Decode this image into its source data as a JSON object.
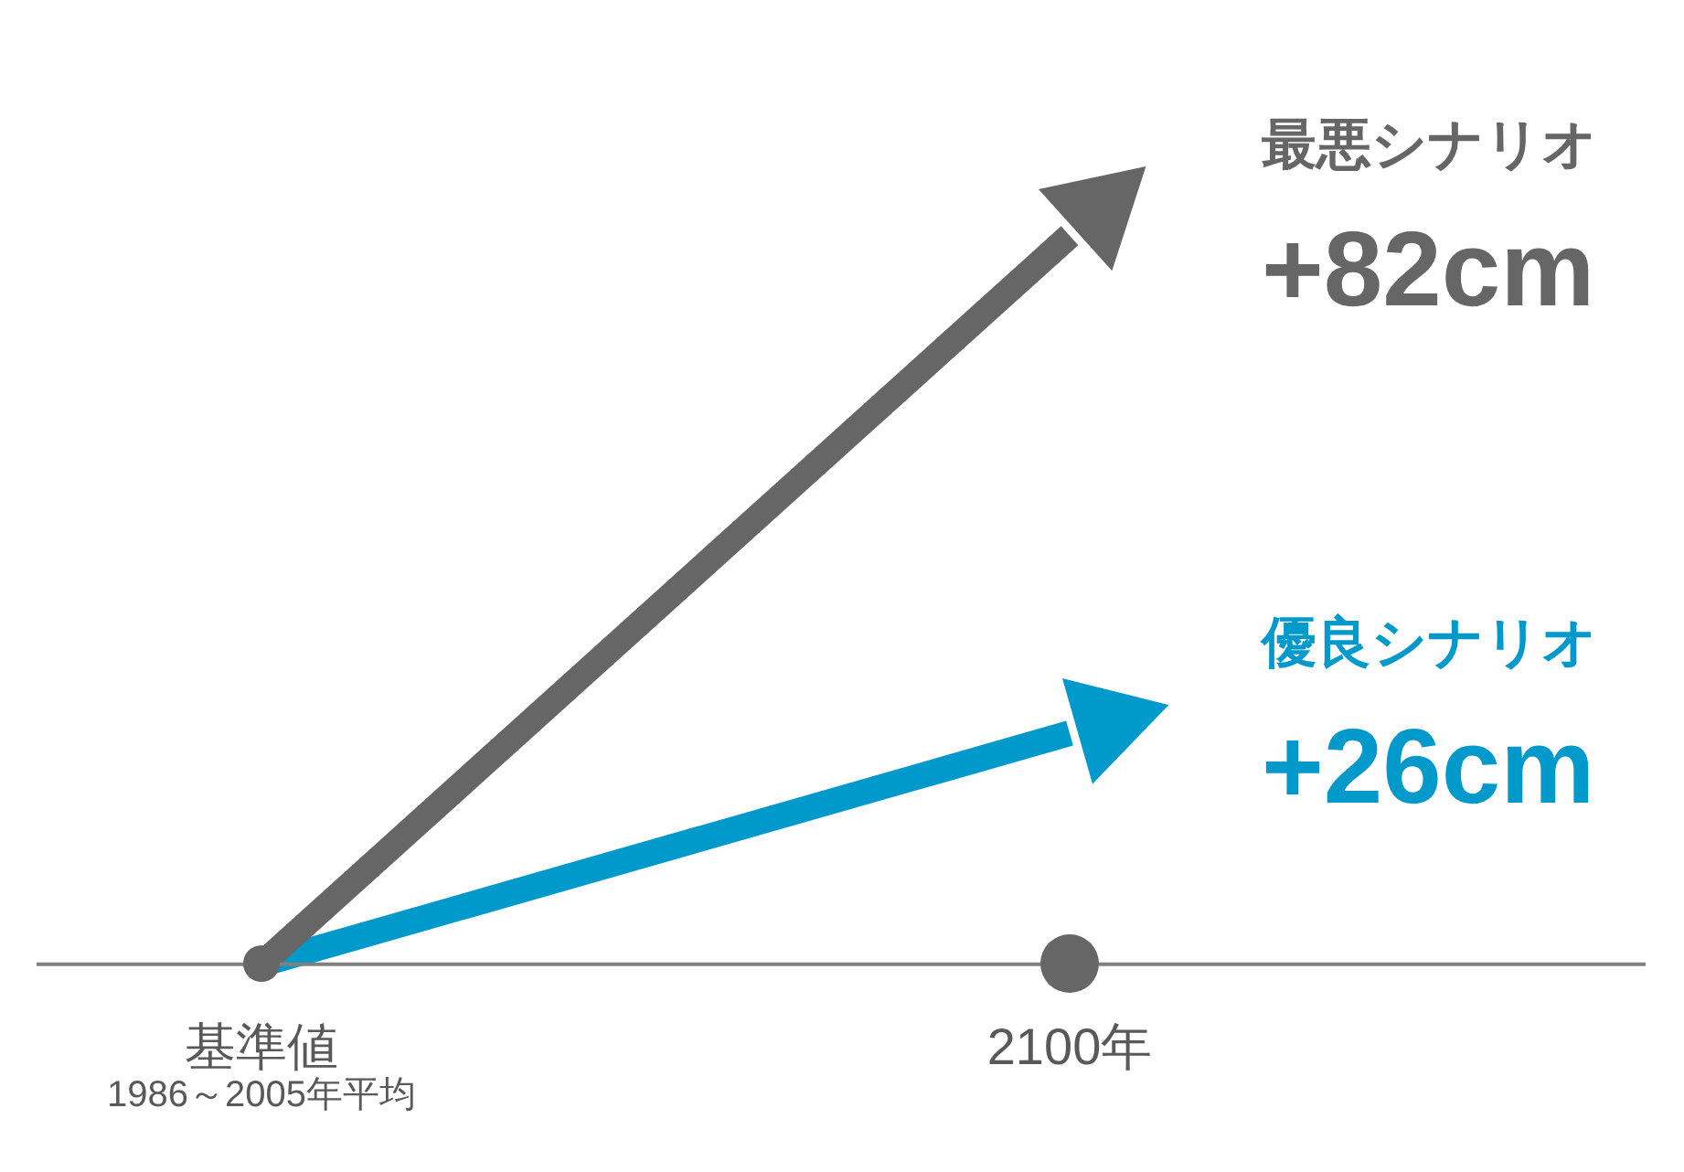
{
  "chart_data": {
    "type": "line",
    "categories": [
      "基準値",
      "2100年"
    ],
    "series": [
      {
        "name": "最悪シナリオ",
        "color": "#666666",
        "values": [
          0,
          82
        ],
        "value_labels": [
          null,
          "+82cm"
        ]
      },
      {
        "name": "優良シナリオ",
        "color": "#0099cc",
        "values": [
          0,
          26
        ],
        "value_labels": [
          null,
          "+26cm"
        ]
      }
    ],
    "tick_labels": "x",
    "grid": false,
    "legend": false,
    "line_style": "solid",
    "annotations": [
      "1986～2005年平均"
    ]
  }
}
